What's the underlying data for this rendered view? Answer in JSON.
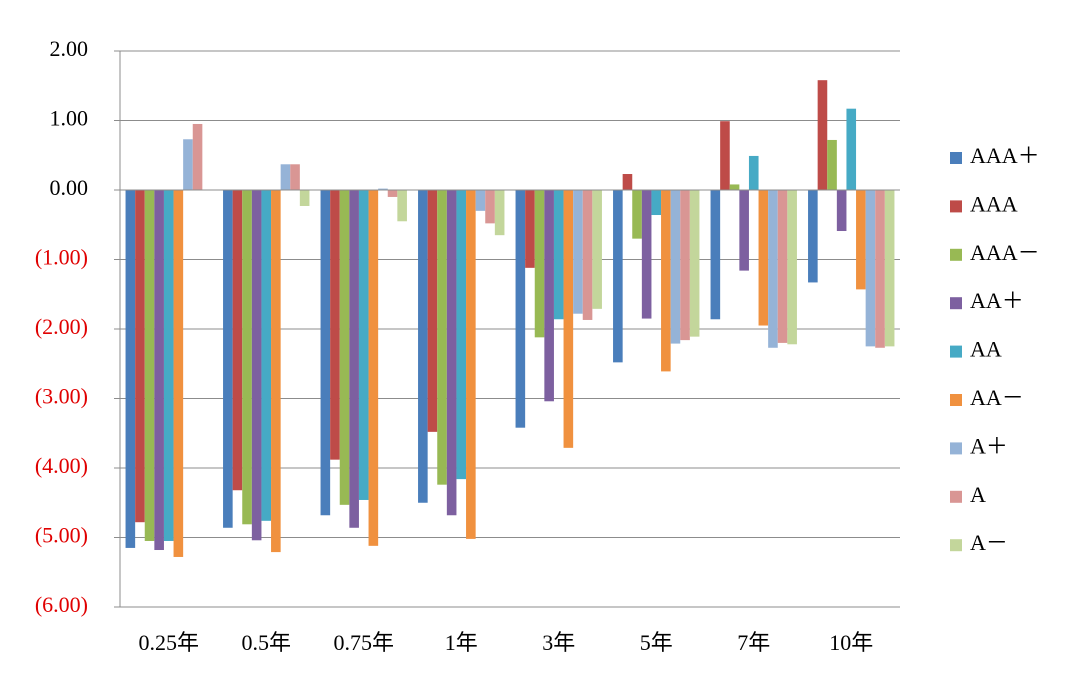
{
  "chart_data": {
    "type": "bar",
    "categories": [
      "0.25年",
      "0.5年",
      "0.75年",
      "1年",
      "3年",
      "5年",
      "7年",
      "10年"
    ],
    "series": [
      {
        "name": "AAA＋",
        "color": "#4a7ebb",
        "values": [
          -5.15,
          -4.86,
          -4.68,
          -4.5,
          -3.42,
          -2.48,
          -1.86,
          -1.33
        ]
      },
      {
        "name": "AAA",
        "color": "#be4b48",
        "values": [
          -4.78,
          -4.32,
          -3.88,
          -3.48,
          -1.12,
          0.23,
          0.99,
          1.58
        ]
      },
      {
        "name": "AAA－",
        "color": "#98b954",
        "values": [
          -5.05,
          -4.81,
          -4.53,
          -4.24,
          -2.12,
          -0.7,
          0.08,
          0.72
        ]
      },
      {
        "name": "AA＋",
        "color": "#7d60a0",
        "values": [
          -5.18,
          -5.04,
          -4.86,
          -4.68,
          -3.04,
          -1.85,
          -1.16,
          -0.59
        ]
      },
      {
        "name": "AA",
        "color": "#46aac5",
        "values": [
          -5.05,
          -4.76,
          -4.46,
          -4.16,
          -1.86,
          -0.36,
          0.49,
          1.17
        ]
      },
      {
        "name": "AA－",
        "color": "#f0913f",
        "values": [
          -5.28,
          -5.21,
          -5.12,
          -5.02,
          -3.71,
          -2.61,
          -1.95,
          -1.43
        ]
      },
      {
        "name": "A＋",
        "color": "#95b3d7",
        "values": [
          0.73,
          0.37,
          0.02,
          -0.3,
          -1.78,
          -2.21,
          -2.27,
          -2.25
        ]
      },
      {
        "name": "A",
        "color": "#d99694",
        "values": [
          0.95,
          0.37,
          -0.1,
          -0.48,
          -1.87,
          -2.16,
          -2.2,
          -2.27
        ]
      },
      {
        "name": "A－",
        "color": "#c3d69b",
        "values": [
          0,
          -0.23,
          -0.45,
          -0.65,
          -1.71,
          -2.11,
          -2.22,
          -2.25
        ]
      }
    ],
    "ylim": [
      -6,
      2
    ],
    "yticks": [
      {
        "value": 2,
        "label": "2.00"
      },
      {
        "value": 1,
        "label": "1.00"
      },
      {
        "value": 0,
        "label": "0.00"
      },
      {
        "value": -1,
        "label": "(1.00)"
      },
      {
        "value": -2,
        "label": "(2.00)"
      },
      {
        "value": -3,
        "label": "(3.00)"
      },
      {
        "value": -4,
        "label": "(4.00)"
      },
      {
        "value": -5,
        "label": "(5.00)"
      },
      {
        "value": -6,
        "label": "(6.00)"
      }
    ],
    "grid": true,
    "legend": "right"
  }
}
